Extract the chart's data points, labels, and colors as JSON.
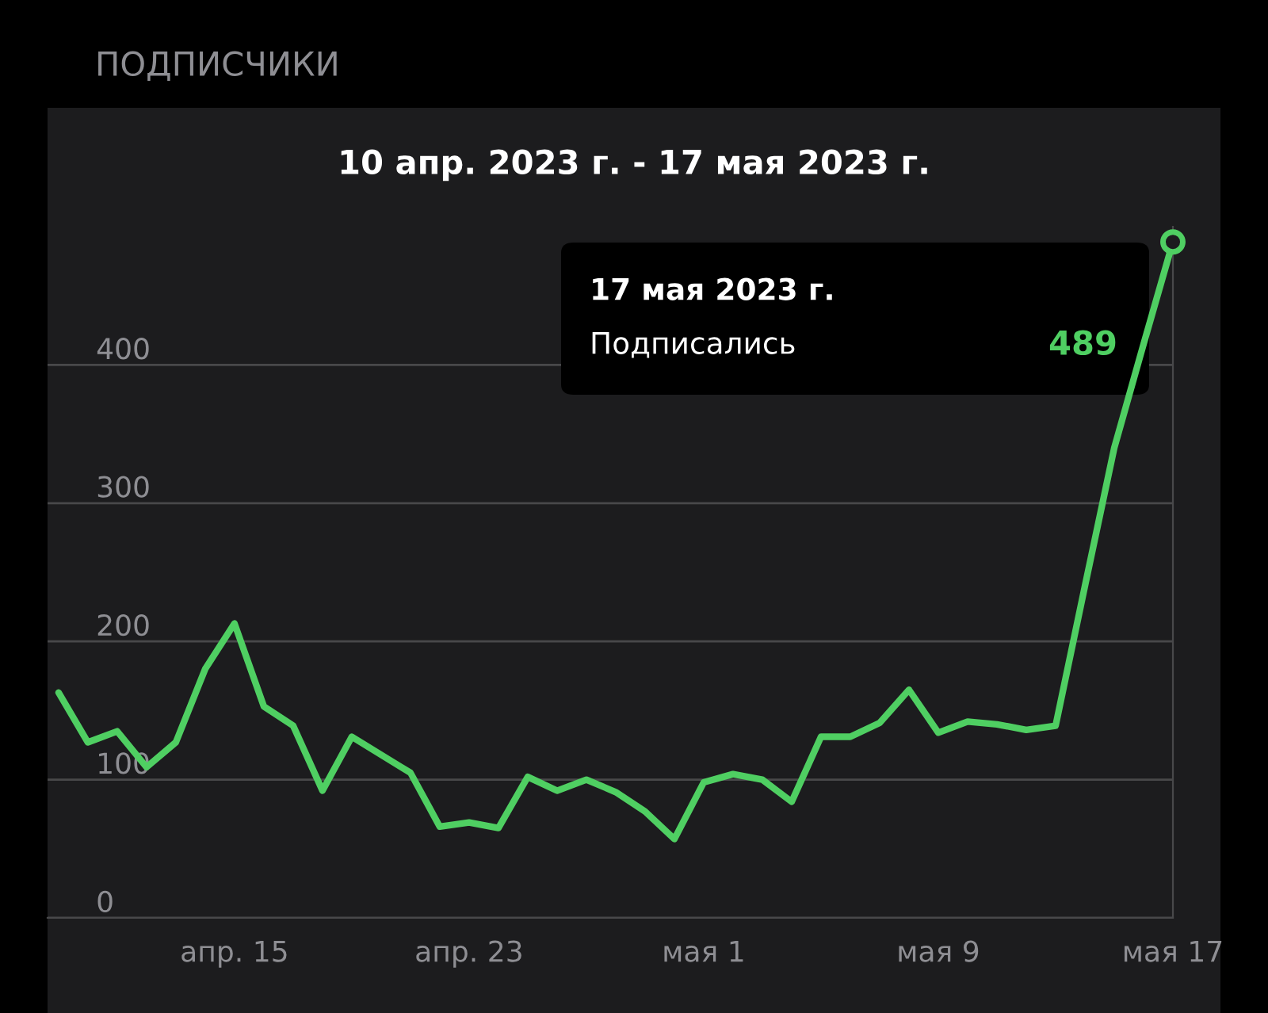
{
  "chart_data": {
    "type": "line",
    "title": "ПОДПИСЧИКИ",
    "subtitle": "10 апр. 2023 г. - 17 мая 2023 г.",
    "x": [
      "2023-04-09",
      "2023-04-10",
      "2023-04-11",
      "2023-04-12",
      "2023-04-13",
      "2023-04-14",
      "2023-04-15",
      "2023-04-16",
      "2023-04-17",
      "2023-04-18",
      "2023-04-19",
      "2023-04-20",
      "2023-04-21",
      "2023-04-22",
      "2023-04-23",
      "2023-04-24",
      "2023-04-25",
      "2023-04-26",
      "2023-04-27",
      "2023-04-28",
      "2023-04-29",
      "2023-04-30",
      "2023-05-01",
      "2023-05-02",
      "2023-05-03",
      "2023-05-04",
      "2023-05-05",
      "2023-05-06",
      "2023-05-07",
      "2023-05-08",
      "2023-05-09",
      "2023-05-10",
      "2023-05-11",
      "2023-05-12",
      "2023-05-13",
      "2023-05-14",
      "2023-05-15",
      "2023-05-16",
      "2023-05-17"
    ],
    "series": [
      {
        "color": "#4fcf62",
        "values": [
          163,
          127,
          135,
          109,
          127,
          180,
          213,
          153,
          139,
          92,
          131,
          118,
          105,
          66,
          69,
          65,
          102,
          92,
          100,
          91,
          77,
          57,
          98,
          104,
          100,
          84,
          131,
          131,
          141,
          165,
          134,
          142,
          140,
          136,
          139,
          240,
          340,
          415,
          489
        ]
      }
    ],
    "xlim": [
      "2023-04-08T15:00",
      "2023-05-17"
    ],
    "xticks": [
      {
        "value": "2023-04-15",
        "label": "апр. 15"
      },
      {
        "value": "2023-04-23",
        "label": "апр. 23"
      },
      {
        "value": "2023-05-01",
        "label": "мая 1"
      },
      {
        "value": "2023-05-09",
        "label": "мая 9"
      },
      {
        "value": "2023-05-17",
        "label": "мая 17"
      }
    ],
    "ylim": [
      0,
      500
    ],
    "yticks": [
      0,
      100,
      200,
      300,
      400
    ],
    "grid": "y",
    "marker": "none",
    "line_style": "solid",
    "annotations": [
      "17 мая 2023 г.",
      "Подписались",
      "489"
    ]
  }
}
